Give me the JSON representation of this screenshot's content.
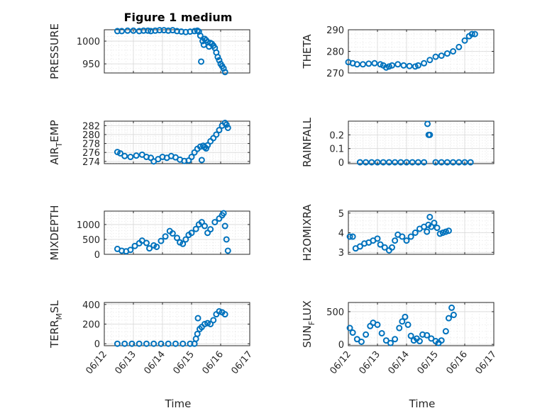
{
  "figure": {
    "title": "Figure 1 medium",
    "x_axis_label": "Time",
    "x_tick_labels": [
      "06/12",
      "06/13",
      "06/14",
      "06/15",
      "06/16",
      "06/17"
    ]
  },
  "colors": {
    "marker": "#0072bd",
    "axes": "#262626",
    "grid": "#d7d7d7"
  },
  "chart_data": [
    {
      "type": "scatter",
      "id": "pressure",
      "ylabel": "PRESSURE",
      "ylim": [
        930,
        1025
      ],
      "yticks": [
        950,
        1000
      ],
      "x_range": [
        "06/12",
        "06/17"
      ],
      "grid": true,
      "marker": "open-circle",
      "points": [
        [
          0.45,
          1022
        ],
        [
          0.6,
          1022
        ],
        [
          0.8,
          1023
        ],
        [
          1.0,
          1023
        ],
        [
          1.2,
          1022
        ],
        [
          1.35,
          1023
        ],
        [
          1.5,
          1023
        ],
        [
          1.6,
          1022
        ],
        [
          1.75,
          1023
        ],
        [
          1.9,
          1024
        ],
        [
          2.05,
          1024
        ],
        [
          2.2,
          1023
        ],
        [
          2.35,
          1024
        ],
        [
          2.5,
          1022
        ],
        [
          2.65,
          1021
        ],
        [
          2.8,
          1020
        ],
        [
          2.95,
          1021
        ],
        [
          3.1,
          1022
        ],
        [
          3.2,
          1023
        ],
        [
          3.25,
          1021
        ],
        [
          3.3,
          1012
        ],
        [
          3.33,
          955
        ],
        [
          3.38,
          1000
        ],
        [
          3.42,
          992
        ],
        [
          3.45,
          1005
        ],
        [
          3.5,
          1002
        ],
        [
          3.55,
          998
        ],
        [
          3.6,
          988
        ],
        [
          3.65,
          996
        ],
        [
          3.7,
          994
        ],
        [
          3.75,
          990
        ],
        [
          3.8,
          985
        ],
        [
          3.85,
          975
        ],
        [
          3.9,
          965
        ],
        [
          3.95,
          958
        ],
        [
          4.0,
          950
        ],
        [
          4.05,
          945
        ],
        [
          4.1,
          940
        ],
        [
          4.15,
          932
        ]
      ]
    },
    {
      "type": "scatter",
      "id": "theta",
      "ylabel": "THETA",
      "ylim": [
        270,
        290
      ],
      "yticks": [
        270,
        280,
        290
      ],
      "x_range": [
        "06/12",
        "06/17"
      ],
      "grid": true,
      "marker": "open-circle",
      "points": [
        [
          0.0,
          275
        ],
        [
          0.15,
          274.5
        ],
        [
          0.3,
          274
        ],
        [
          0.5,
          274
        ],
        [
          0.7,
          274.3
        ],
        [
          0.9,
          274.5
        ],
        [
          1.1,
          274
        ],
        [
          1.2,
          273.5
        ],
        [
          1.3,
          272.5
        ],
        [
          1.4,
          273
        ],
        [
          1.5,
          273.5
        ],
        [
          1.7,
          274
        ],
        [
          1.9,
          273.5
        ],
        [
          2.1,
          273.2
        ],
        [
          2.3,
          273
        ],
        [
          2.4,
          273.5
        ],
        [
          2.6,
          274.5
        ],
        [
          2.8,
          276
        ],
        [
          3.0,
          277.5
        ],
        [
          3.2,
          278
        ],
        [
          3.4,
          279
        ],
        [
          3.6,
          280
        ],
        [
          3.8,
          282
        ],
        [
          4.0,
          285
        ],
        [
          4.15,
          287
        ],
        [
          4.25,
          288
        ],
        [
          4.35,
          288
        ]
      ]
    },
    {
      "type": "scatter",
      "id": "air_temp",
      "ylabel": "AIR_TEMP",
      "ylim": [
        273.5,
        283
      ],
      "yticks": [
        274,
        276,
        278,
        280,
        282
      ],
      "x_range": [
        "06/12",
        "06/17"
      ],
      "grid": true,
      "marker": "open-circle",
      "points": [
        [
          0.45,
          276.1
        ],
        [
          0.55,
          275.8
        ],
        [
          0.7,
          275.2
        ],
        [
          0.9,
          275
        ],
        [
          1.1,
          275.3
        ],
        [
          1.3,
          275.5
        ],
        [
          1.45,
          275
        ],
        [
          1.6,
          274.8
        ],
        [
          1.7,
          274
        ],
        [
          1.85,
          274.5
        ],
        [
          2.0,
          275
        ],
        [
          2.15,
          274.8
        ],
        [
          2.3,
          275.2
        ],
        [
          2.45,
          274.9
        ],
        [
          2.6,
          274.4
        ],
        [
          2.75,
          274.1
        ],
        [
          2.9,
          274.2
        ],
        [
          3.0,
          275
        ],
        [
          3.1,
          276
        ],
        [
          3.2,
          276.8
        ],
        [
          3.3,
          277.3
        ],
        [
          3.35,
          274.3
        ],
        [
          3.4,
          277.5
        ],
        [
          3.45,
          277.2
        ],
        [
          3.5,
          276.9
        ],
        [
          3.55,
          277.6
        ],
        [
          3.65,
          278.5
        ],
        [
          3.75,
          279.2
        ],
        [
          3.85,
          280
        ],
        [
          3.95,
          281
        ],
        [
          4.05,
          282
        ],
        [
          4.15,
          282.6
        ],
        [
          4.2,
          282.2
        ],
        [
          4.25,
          281.5
        ]
      ]
    },
    {
      "type": "scatter",
      "id": "rainfall",
      "ylabel": "RAINFALL",
      "ylim": [
        -0.01,
        0.3
      ],
      "yticks": [
        0,
        0.1,
        0.2
      ],
      "x_range": [
        "06/12",
        "06/17"
      ],
      "grid": true,
      "marker": "open-circle",
      "points": [
        [
          0.4,
          0
        ],
        [
          0.6,
          0
        ],
        [
          0.8,
          0
        ],
        [
          1.0,
          0
        ],
        [
          1.2,
          0
        ],
        [
          1.4,
          0
        ],
        [
          1.6,
          0
        ],
        [
          1.8,
          0
        ],
        [
          2.0,
          0
        ],
        [
          2.2,
          0
        ],
        [
          2.4,
          0
        ],
        [
          2.6,
          0
        ],
        [
          2.72,
          0.28
        ],
        [
          2.76,
          0.2
        ],
        [
          2.8,
          0.2
        ],
        [
          3.0,
          0
        ],
        [
          3.2,
          0
        ],
        [
          3.4,
          0
        ],
        [
          3.6,
          0
        ],
        [
          3.8,
          0
        ],
        [
          4.0,
          0
        ],
        [
          4.2,
          0
        ]
      ]
    },
    {
      "type": "scatter",
      "id": "mixdepth",
      "ylabel": "MIXDEPTH",
      "ylim": [
        0,
        1450
      ],
      "yticks": [
        0,
        500,
        1000
      ],
      "x_range": [
        "06/12",
        "06/17"
      ],
      "grid": true,
      "marker": "open-circle",
      "points": [
        [
          0.45,
          180
        ],
        [
          0.6,
          120
        ],
        [
          0.75,
          100
        ],
        [
          0.9,
          150
        ],
        [
          1.05,
          280
        ],
        [
          1.2,
          370
        ],
        [
          1.3,
          460
        ],
        [
          1.45,
          380
        ],
        [
          1.55,
          200
        ],
        [
          1.7,
          300
        ],
        [
          1.8,
          250
        ],
        [
          1.95,
          450
        ],
        [
          2.1,
          600
        ],
        [
          2.25,
          780
        ],
        [
          2.35,
          700
        ],
        [
          2.5,
          550
        ],
        [
          2.6,
          400
        ],
        [
          2.7,
          350
        ],
        [
          2.8,
          500
        ],
        [
          2.9,
          650
        ],
        [
          3.0,
          720
        ],
        [
          3.15,
          850
        ],
        [
          3.25,
          1000
        ],
        [
          3.35,
          1080
        ],
        [
          3.45,
          950
        ],
        [
          3.55,
          720
        ],
        [
          3.65,
          840
        ],
        [
          3.8,
          1080
        ],
        [
          3.95,
          1200
        ],
        [
          4.05,
          1310
        ],
        [
          4.1,
          1380
        ],
        [
          4.15,
          950
        ],
        [
          4.2,
          500
        ],
        [
          4.25,
          120
        ]
      ]
    },
    {
      "type": "scatter",
      "id": "h2omixra",
      "ylabel": "H2OMIXRA",
      "ylim": [
        2.9,
        5.1
      ],
      "yticks": [
        3,
        4,
        5
      ],
      "x_range": [
        "06/12",
        "06/17"
      ],
      "grid": true,
      "marker": "open-circle",
      "points": [
        [
          0.05,
          3.8
        ],
        [
          0.15,
          3.8
        ],
        [
          0.25,
          3.2
        ],
        [
          0.4,
          3.3
        ],
        [
          0.55,
          3.45
        ],
        [
          0.7,
          3.5
        ],
        [
          0.85,
          3.6
        ],
        [
          1.0,
          3.7
        ],
        [
          1.1,
          3.4
        ],
        [
          1.25,
          3.25
        ],
        [
          1.4,
          3.1
        ],
        [
          1.5,
          3.25
        ],
        [
          1.6,
          3.6
        ],
        [
          1.7,
          3.9
        ],
        [
          1.85,
          3.8
        ],
        [
          2.0,
          3.6
        ],
        [
          2.15,
          3.8
        ],
        [
          2.3,
          4.0
        ],
        [
          2.45,
          4.2
        ],
        [
          2.6,
          4.3
        ],
        [
          2.7,
          4.05
        ],
        [
          2.75,
          4.4
        ],
        [
          2.8,
          4.8
        ],
        [
          2.85,
          4.3
        ],
        [
          2.95,
          4.5
        ],
        [
          3.05,
          4.25
        ],
        [
          3.15,
          3.95
        ],
        [
          3.25,
          4.0
        ],
        [
          3.35,
          4.05
        ],
        [
          3.45,
          4.1
        ]
      ]
    },
    {
      "type": "scatter",
      "id": "terr_msl",
      "ylabel": "TERR_MSL",
      "ylim": [
        -20,
        420
      ],
      "yticks": [
        0,
        200,
        400
      ],
      "x_range": [
        "06/12",
        "06/17"
      ],
      "grid": true,
      "marker": "open-circle",
      "points": [
        [
          0.45,
          0
        ],
        [
          0.7,
          0
        ],
        [
          0.95,
          0
        ],
        [
          1.2,
          0
        ],
        [
          1.45,
          0
        ],
        [
          1.7,
          0
        ],
        [
          1.95,
          0
        ],
        [
          2.2,
          0
        ],
        [
          2.45,
          0
        ],
        [
          2.7,
          0
        ],
        [
          2.95,
          0
        ],
        [
          3.1,
          0
        ],
        [
          3.15,
          50
        ],
        [
          3.2,
          100
        ],
        [
          3.22,
          260
        ],
        [
          3.28,
          150
        ],
        [
          3.35,
          170
        ],
        [
          3.45,
          200
        ],
        [
          3.55,
          210
        ],
        [
          3.65,
          200
        ],
        [
          3.75,
          240
        ],
        [
          3.85,
          300
        ],
        [
          3.95,
          330
        ],
        [
          4.05,
          320
        ],
        [
          4.15,
          300
        ]
      ]
    },
    {
      "type": "scatter",
      "id": "sun_flux",
      "ylabel": "SUN_FLUX",
      "ylim": [
        -20,
        640
      ],
      "yticks": [
        0,
        500
      ],
      "x_range": [
        "06/12",
        "06/17"
      ],
      "grid": true,
      "marker": "open-circle",
      "points": [
        [
          0.05,
          250
        ],
        [
          0.15,
          180
        ],
        [
          0.3,
          80
        ],
        [
          0.45,
          40
        ],
        [
          0.6,
          150
        ],
        [
          0.75,
          280
        ],
        [
          0.85,
          330
        ],
        [
          1.0,
          300
        ],
        [
          1.15,
          170
        ],
        [
          1.3,
          60
        ],
        [
          1.45,
          20
        ],
        [
          1.6,
          80
        ],
        [
          1.75,
          250
        ],
        [
          1.85,
          350
        ],
        [
          1.95,
          420
        ],
        [
          2.05,
          300
        ],
        [
          2.15,
          130
        ],
        [
          2.25,
          60
        ],
        [
          2.35,
          90
        ],
        [
          2.45,
          50
        ],
        [
          2.55,
          150
        ],
        [
          2.7,
          140
        ],
        [
          2.85,
          90
        ],
        [
          3.0,
          50
        ],
        [
          3.1,
          20
        ],
        [
          3.2,
          60
        ],
        [
          3.35,
          200
        ],
        [
          3.45,
          400
        ],
        [
          3.55,
          560
        ],
        [
          3.62,
          450
        ]
      ]
    }
  ]
}
